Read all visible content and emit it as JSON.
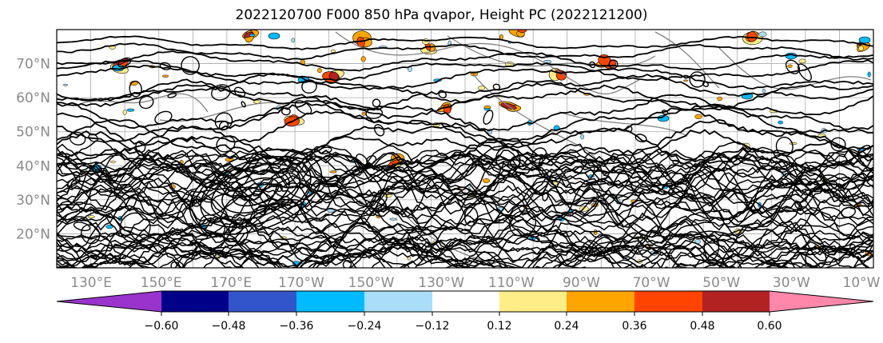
{
  "title": "2022120700 F000 850 hPa qvapor, Height PC (2022121200)",
  "map": {
    "lat_labels": [
      "70°N",
      "60°N",
      "50°N",
      "40°N",
      "30°N",
      "20°N"
    ],
    "lat_values": [
      70,
      60,
      50,
      40,
      30,
      20
    ],
    "lat_range": [
      10,
      80
    ],
    "lon_labels": [
      "130°E",
      "150°E",
      "170°E",
      "170°W",
      "150°W",
      "130°W",
      "110°W",
      "90°W",
      "70°W",
      "50°W",
      "30°W",
      "10°W"
    ],
    "grid_meridians": 24,
    "grid_parallels": [
      20,
      30,
      40,
      50,
      60,
      70
    ]
  },
  "colorbar": {
    "tick_labels": [
      "−0.60",
      "−0.48",
      "−0.36",
      "−0.24",
      "−0.12",
      "0.12",
      "0.24",
      "0.36",
      "0.48",
      "0.60"
    ],
    "ticks": [
      -0.6,
      -0.48,
      -0.36,
      -0.24,
      -0.12,
      0.12,
      0.24,
      0.36,
      0.48,
      0.6
    ],
    "colors": [
      "#9933cc",
      "#000088",
      "#3355cc",
      "#00bbff",
      "#aaddf7",
      "#ffffff",
      "#ffee88",
      "#ffa500",
      "#ff4400",
      "#b22222",
      "#ff88aa"
    ],
    "extend": "both"
  }
}
